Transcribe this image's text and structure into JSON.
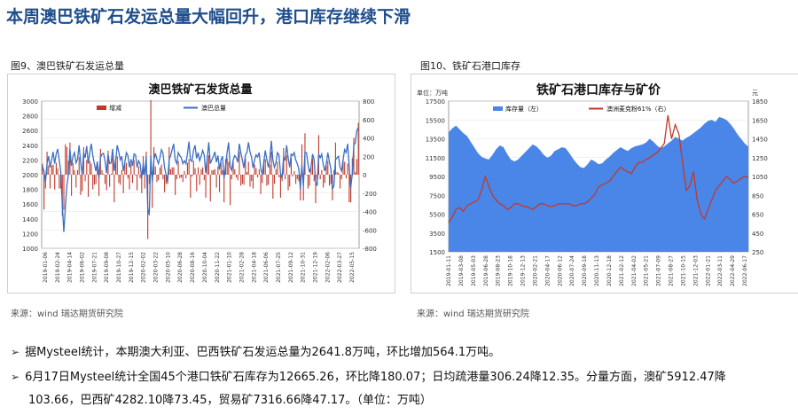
{
  "page": {
    "title": "本周澳巴铁矿石发运总量大幅回升，港口库存继续下滑",
    "bullets": [
      "据Mysteel统计，本期澳大利亚、巴西铁矿石发运总量为2641.8万吨，环比增加564.1万吨。",
      "6月17日Mysteel统计全国45个港口铁矿石库存为12665.26，环比降180.07；日均疏港量306.24降12.35。分量方面，澳矿5912.47降",
      "103.66，巴西矿4282.10降73.45，贸易矿7316.66降47.17。（单位：万吨）"
    ],
    "arrow": "➢"
  },
  "chart_data": [
    {
      "caption": "图9、澳巴铁矿石发运总量",
      "type": "bar+line",
      "title": "澳巴铁矿石发货总量",
      "source": "来源：wind   瑞达期货研究院",
      "legend": [
        "增减",
        "澳巴总量"
      ],
      "legend_position": "top",
      "colors": {
        "bar": "#c0392b",
        "line": "#3a6fc4"
      },
      "y_left": {
        "min": 1000,
        "max": 3000,
        "ticks": [
          1000,
          1200,
          1400,
          1600,
          1800,
          2000,
          2200,
          2400,
          2600,
          2800,
          3000
        ]
      },
      "y_right": {
        "min": -800,
        "max": 800,
        "ticks": [
          -800,
          -600,
          -400,
          -200,
          0,
          200,
          400,
          600,
          800
        ]
      },
      "x_labels": [
        "2019-01-06",
        "2019-02-24",
        "2019-04-14",
        "2019-06-02",
        "2019-07-21",
        "2019-09-08",
        "2019-10-27",
        "2019-12-15",
        "2020-02-02",
        "2020-03-22",
        "2020-05-10",
        "2020-06-28",
        "2020-08-16",
        "2020-10-04",
        "2020-11-22",
        "2021-01-10",
        "2021-02-28",
        "2021-04-18",
        "2021-06-06",
        "2021-07-25",
        "2021-09-12",
        "2021-10-31",
        "2021-12-19",
        "2022-02-06",
        "2022-03-27",
        "2022-05-15"
      ],
      "series_total": [
        2120,
        2050,
        1900,
        2150,
        2250,
        2100,
        2200,
        2310,
        2150,
        2280,
        2350,
        2200,
        2050,
        1600,
        1220,
        1550,
        1850,
        2000,
        2350,
        2120,
        2250,
        2300,
        2160,
        2210,
        2400,
        2180,
        2000,
        2300,
        2230,
        2390,
        2150,
        2300,
        2420,
        2260,
        2150,
        2050,
        2180,
        1950,
        2230,
        2280,
        2290,
        2190,
        2020,
        2280,
        2150,
        2160,
        2350,
        2050,
        2200,
        2400,
        2310,
        2200,
        2250,
        2050,
        2170,
        2300,
        2260,
        2100,
        2210,
        2120,
        2280,
        2270,
        2100,
        2190,
        2150,
        1950,
        2150,
        2000,
        2250,
        1550,
        1450,
        2260,
        1900,
        2200,
        2290,
        2210,
        2150,
        2230,
        2340,
        2290,
        2100,
        2000,
        1900,
        2200,
        2260,
        2340,
        2420,
        2200,
        2150,
        2300,
        2260,
        2230,
        2150,
        2190,
        2150,
        2280,
        2450,
        2200,
        2180,
        2330,
        2400,
        2220,
        2300,
        2190,
        2250,
        2330,
        2270,
        2020,
        2230,
        2440,
        2150,
        2200,
        2250,
        2310,
        2170,
        2260,
        2070,
        2200,
        2250,
        1950,
        2120,
        2300,
        2440,
        2110,
        2060,
        2200,
        2260,
        2230,
        2170,
        2420,
        2300,
        2200,
        2090,
        2270,
        2300,
        2440,
        2310,
        2240,
        2090,
        2200,
        2270,
        2240,
        2300,
        2090,
        2000,
        2160,
        2330,
        2210,
        2100,
        2210,
        2460,
        2200,
        2100,
        2160,
        2300,
        2270,
        2020,
        1950,
        2240,
        2190,
        2400,
        2230,
        2100,
        2280,
        2260,
        2300,
        2200,
        2150,
        2080,
        1800,
        2130,
        1850,
        2300,
        2300,
        2150,
        2030,
        2100,
        2280,
        2210,
        1900,
        1850,
        2280,
        2230,
        2280,
        2140,
        2050,
        2150,
        2300,
        2180,
        2080,
        1800,
        1850,
        2200,
        2230,
        2250,
        2100,
        2050,
        2200,
        2340,
        2300,
        2420,
        2120,
        1820,
        2000,
        2400,
        2430,
        2600,
        2642
      ],
      "series_change": [
        120,
        -380,
        -150,
        250,
        100,
        -150,
        100,
        110,
        -160,
        130,
        70,
        -150,
        -150,
        -450,
        -380,
        330,
        300,
        150,
        350,
        -230,
        130,
        50,
        -140,
        50,
        190,
        -220,
        -180,
        300,
        -70,
        160,
        -240,
        150,
        120,
        -160,
        -110,
        -100,
        130,
        -230,
        280,
        50,
        10,
        -100,
        -170,
        260,
        -130,
        10,
        190,
        -300,
        150,
        200,
        -90,
        -110,
        50,
        -200,
        120,
        130,
        -40,
        -160,
        110,
        -90,
        160,
        -10,
        -170,
        90,
        -40,
        -200,
        200,
        -150,
        250,
        -700,
        -100,
        810,
        -360,
        300,
        90,
        -80,
        -60,
        80,
        110,
        -50,
        -190,
        -100,
        -100,
        300,
        60,
        80,
        80,
        -220,
        -50,
        150,
        -40,
        -30,
        -80,
        40,
        -40,
        130,
        170,
        -250,
        -20,
        150,
        70,
        -180,
        80,
        -110,
        60,
        80,
        -60,
        -250,
        210,
        210,
        -290,
        50,
        50,
        60,
        -140,
        90,
        -190,
        130,
        50,
        -300,
        170,
        180,
        140,
        -330,
        -50,
        140,
        60,
        -30,
        -60,
        250,
        -120,
        -100,
        -110,
        180,
        30,
        140,
        -130,
        -70,
        -150,
        110,
        70,
        -30,
        60,
        -210,
        -90,
        160,
        170,
        -120,
        -110,
        110,
        250,
        -260,
        -100,
        60,
        140,
        -30,
        -250,
        -70,
        290,
        -50,
        210,
        -170,
        -130,
        180,
        -20,
        40,
        -100,
        -50,
        -70,
        -280,
        330,
        -280,
        450,
        0,
        -150,
        -120,
        70,
        180,
        -70,
        -310,
        -50,
        430,
        -50,
        50,
        -140,
        -90,
        100,
        150,
        -120,
        -100,
        -280,
        50,
        350,
        30,
        20,
        -150,
        -50,
        150,
        140,
        -40,
        120,
        -300,
        -300,
        180,
        400,
        30,
        170,
        564
      ]
    },
    {
      "caption": "图10、铁矿石港口库存",
      "type": "area+line",
      "title": "铁矿石港口库存与矿价",
      "source": "来源：wind   瑞达期货研究院",
      "unit_left": "单位：万吨",
      "unit_right": "元",
      "legend": [
        "库存量（左）",
        "澳洲麦克粉61%（右）"
      ],
      "legend_position": "top",
      "colors": {
        "area": "#4a86e8",
        "line": "#c0392b"
      },
      "y_left": {
        "min": 1500,
        "max": 17500,
        "ticks": [
          1500,
          3500,
          5500,
          7500,
          9500,
          11500,
          13500,
          15500,
          17500
        ]
      },
      "y_right": {
        "min": 250,
        "max": 1850,
        "ticks": [
          250,
          450,
          650,
          850,
          1050,
          1250,
          1450,
          1650,
          1850
        ]
      },
      "x_labels": [
        "2019-01-11",
        "2019-03-08",
        "2019-05-03",
        "2019-06-28",
        "2019-08-23",
        "2019-10-18",
        "2019-12-13",
        "2020-02-21",
        "2020-04-17",
        "2020-06-12",
        "2020-07-24",
        "2020-09-18",
        "2020-11-13",
        "2020-12-18",
        "2021-02-12",
        "2021-04-02",
        "2021-05-21",
        "2021-07-09",
        "2021-08-27",
        "2021-10-15",
        "2021-12-03",
        "2022-01-21",
        "2022-03-11",
        "2022-04-29",
        "2022-06-17"
      ],
      "series_inventory": [
        14200,
        14600,
        14900,
        14500,
        14100,
        13800,
        13200,
        12600,
        12000,
        11600,
        11400,
        11300,
        11800,
        12400,
        12800,
        12600,
        11900,
        11300,
        11100,
        11300,
        11700,
        12100,
        12500,
        12900,
        12700,
        12300,
        11800,
        11500,
        11700,
        12200,
        12400,
        12600,
        12500,
        12000,
        11400,
        10900,
        10500,
        10400,
        10800,
        11300,
        11100,
        10800,
        10900,
        11300,
        11600,
        12000,
        12300,
        12600,
        12400,
        12200,
        12500,
        12700,
        12800,
        12900,
        13100,
        13500,
        13200,
        12800,
        12500,
        12700,
        13000,
        13300,
        13700,
        13500,
        13300,
        13600,
        13800,
        14100,
        14400,
        14700,
        15100,
        15400,
        15500,
        15300,
        15800,
        15700,
        15500,
        15100,
        14600,
        14000,
        13500,
        13000,
        12665
      ],
      "series_price": [
        560,
        620,
        700,
        720,
        680,
        740,
        760,
        780,
        800,
        900,
        1050,
        950,
        850,
        800,
        760,
        740,
        700,
        720,
        760,
        760,
        740,
        730,
        720,
        700,
        730,
        760,
        760,
        740,
        730,
        740,
        760,
        760,
        760,
        760,
        740,
        740,
        760,
        760,
        780,
        820,
        860,
        940,
        960,
        980,
        1000,
        1050,
        1100,
        1150,
        1120,
        1100,
        1080,
        1150,
        1200,
        1200,
        1230,
        1250,
        1280,
        1300,
        1350,
        1400,
        1700,
        1450,
        1600,
        1500,
        1200,
        900,
        950,
        1100,
        800,
        650,
        600,
        700,
        800,
        900,
        950,
        1000,
        1050,
        1020,
        980,
        1000,
        1030,
        1050,
        1040
      ]
    }
  ]
}
